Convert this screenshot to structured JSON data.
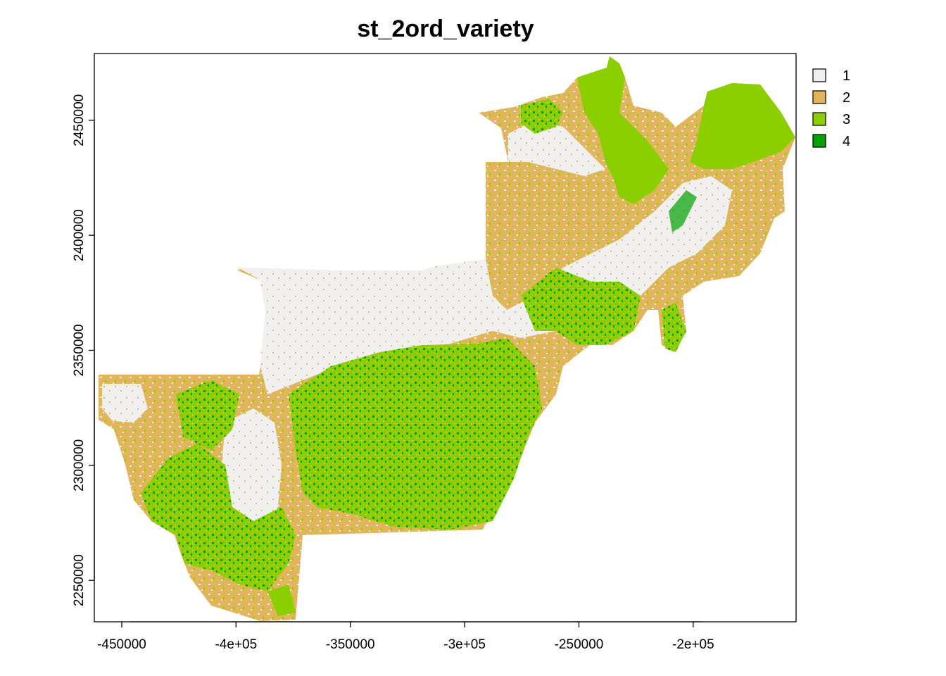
{
  "title": "st_2ord_variety",
  "x_ticks": [
    "-450000",
    "-4e+05",
    "-350000",
    "-3e+05",
    "-250000",
    "-2e+05"
  ],
  "y_ticks": [
    "2250000",
    "2300000",
    "2350000",
    "2400000",
    "2450000"
  ],
  "legend": [
    {
      "label": "1",
      "color": "#f0f0f0"
    },
    {
      "label": "2",
      "color": "#e3b55a"
    },
    {
      "label": "3",
      "color": "#8ccf00"
    },
    {
      "label": "4",
      "color": "#00a000"
    }
  ],
  "chart_data": {
    "type": "heatmap",
    "title": "st_2ord_variety",
    "xlabel": "",
    "ylabel": "",
    "xlim": [
      -462000,
      -155000
    ],
    "ylim": [
      2232000,
      2479000
    ],
    "x_tick_values": [
      -450000,
      -400000,
      -350000,
      -300000,
      -250000,
      -200000
    ],
    "y_tick_values": [
      2250000,
      2300000,
      2350000,
      2400000,
      2450000
    ],
    "classes": [
      1,
      2,
      3,
      4
    ],
    "legend_position": "top-right outside plot"
  }
}
